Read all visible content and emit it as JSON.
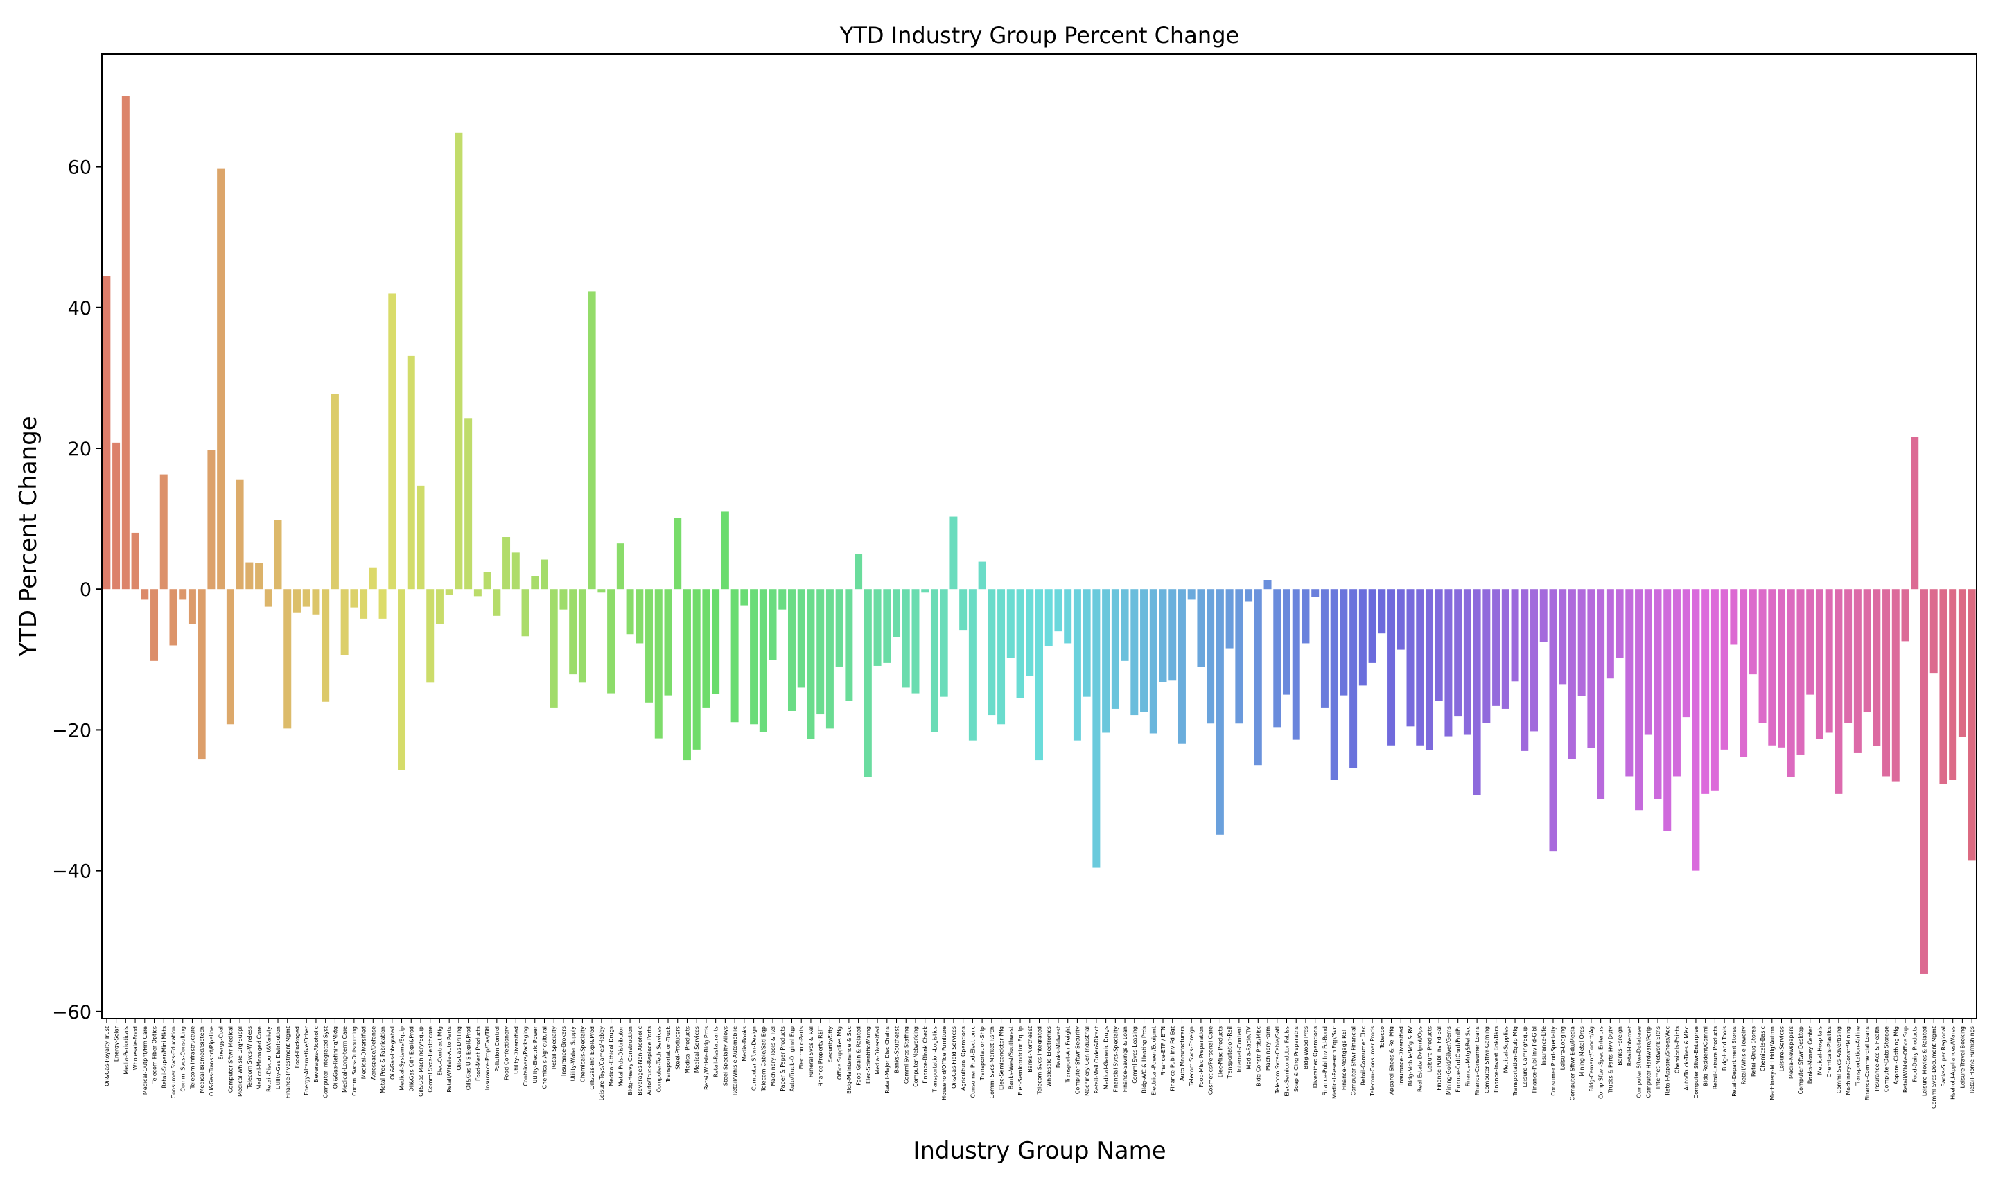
{
  "chart_data": {
    "type": "bar",
    "title": "YTD Industry Group Percent Change",
    "xlabel": "Industry Group Name",
    "ylabel": "YTD Percent Change",
    "ylim": [
      -61,
      76
    ],
    "yticks": [
      -60,
      -40,
      -20,
      0,
      20,
      40,
      60
    ],
    "grid": false,
    "legend": "none",
    "palette": "husl",
    "categories": [
      "Oil&Gas-Royalty Trust",
      "Energy-Solar",
      "Media-Periodicals",
      "Wholesale-Food",
      "Medical-Outpnt/Hm Care",
      "Telecom-Fiber Optics",
      "Retail-Super/Mini Mkts",
      "Consumer Svcs-Education",
      "Comml Svcs-Consulting",
      "Telecom-Infrastructure",
      "Medical-Biomed/Biotech",
      "Oil&Gas-Transprt/Pipeline",
      "Energy-Coal",
      "Computer Sftwr-Medical",
      "Medical-Whlsle Drg/Suppl",
      "Telecom Svcs-Wireless",
      "Medical-Managed Care",
      "Retail-Discount&Variety",
      "Utility-Gas Distribution",
      "Finance-Investment Mgmt",
      "Food-Packaged",
      "Energy-Alternative/Other",
      "Beverages-Alcoholic",
      "Computer-Integrated Syst",
      "Oil&Gas-Refining/Mktg",
      "Medical-Long-term Care",
      "Comml Svcs-Outsourcing",
      "Medical-Diversified",
      "Aerospace/Defense",
      "Metal Proc & Fabrication",
      "Oil&Gas-Integrated",
      "Medical-Systems/Equip",
      "Oil&Gas-Cdn Expl&Prod",
      "Oil&Gas-Machinery/Equip",
      "Comml Svcs-Healthcare",
      "Elec-Contract Mfg",
      "Retail/Whlsle-Auto Parts",
      "Oil&Gas-Drilling",
      "Oil&Gas-U S Expl&Prod",
      "Food-Meat Products",
      "Insurance-Prop/Cas/Titl",
      "Pollution Control",
      "Food-Confectionery",
      "Utility-Diversified",
      "Containers/Packaging",
      "Utility-Electric Power",
      "Chemicals-Agricultural",
      "Retail-Specialty",
      "Insurance-Brokers",
      "Utility-Water Supply",
      "Chemicals-Specialty",
      "Oil&Gas-Intl Expl&Prod",
      "Leisure-Toys/Games/Hobby",
      "Medical-Ethical Drugs",
      "Metal Prds-Distributor",
      "Bldg-Heavy Construction",
      "Beverages-Non-Alcoholic",
      "Auto/Truck-Replace Parts",
      "Computer-Tech Services",
      "Transportation-Truck",
      "Steel-Producers",
      "Medical-Products",
      "Medical-Services",
      "Retail/Whlsle-Bldg Prds",
      "Retail-Restaurants",
      "Steel-Specialty Alloys",
      "Retail/Whlsle-Automobile",
      "Media-Books",
      "Computer Sftwr-Design",
      "Telecom-Cable/Satl Eqp",
      "Machinery-Tools & Rel",
      "Paper & Paper Products",
      "Auto/Truck-Original Eqp",
      "Electronic-Parts",
      "Funeral Svcs & Rel",
      "Finance-Property REIT",
      "Security/Sfty",
      "Office Supplies Mfg",
      "Bldg-Maintenance & Svc",
      "Food-Grain & Related",
      "Elec-Scientific/Msrng",
      "Media-Diversified",
      "Retail-Major Disc Chains",
      "Banks-Southeast",
      "Comml Svcs-Staffing",
      "Computer-Networking",
      "Finance-Blank Check",
      "Transportation-Logistics",
      "Household/Office Furniture",
      "Oil&Gas-Field Services",
      "Agricultural Operations",
      "Consumer Prod-Electronic",
      "Transportation-Ship",
      "Comml Svcs-Market Rsrch",
      "Elec-Semicondctor Mfg",
      "Banks-West/Southwest",
      "Elec-Semicondctor Equip",
      "Banks-Northeast",
      "Telecom Svcs-Integrated",
      "Wholesale-Electronics",
      "Banks-Midwest",
      "Transport-Air Freight",
      "Computer Sftwr-Security",
      "Machinery-Gen Industrial",
      "Retail-Mail Order&Direct",
      "Medical-Generic Drugs",
      "Financial Svcs-Specialty",
      "Finance-Savings & Loan",
      "Comml Svcs-Leasing",
      "Bldg-A/C & Heating Prds",
      "Electrical-Power/Equipmt",
      "Finance-ETF / ETN",
      "Finance-Publ Inv Fd-Eqt",
      "Auto Manufacturers",
      "Telecom Svcs-Foreign",
      "Food-Misc Preparation",
      "Cosmetics/Personal Care",
      "Elec-Misc Products",
      "Transportation-Rail",
      "Internet-Content",
      "Media-Radio/TV",
      "Bldg-Constr Prds/Misc",
      "Machinery-Farm",
      "Telecom Svcs-Cable/Satl",
      "Elec-Semicondctor Fablss",
      "Soap & Clng Preparatns",
      "Bldg-Wood Prds",
      "Diversified Operations",
      "Finance-Publ Inv Fd-Bond",
      "Medical-Research Eqp/Svc",
      "Finance-Mortgage REIT",
      "Computer Sftwr-Financial",
      "Retail-Consumer Elec",
      "Telecom-Consumer Prods",
      "Tobacco",
      "Apparel-Shoes & Rel Mfg",
      "Insurance-Diversified",
      "Bldg-Mobile/Mfg & RV",
      "Real Estate Dvlpmt/Ops",
      "Leisure-Products",
      "Finance-Publ Inv Fd-Bal",
      "Mining-Gold/Silver/Gems",
      "Finance-CrdtCard/PmtPr",
      "Finance-Mrtg&Rel Svc",
      "Finance-Consumer Loans",
      "Computer Sftwr-Gaming",
      "Finance-Invest Bnk/Bkrs",
      "Medical-Supplies",
      "Transportation-Equip Mfg",
      "Leisure-Gaming/Equip",
      "Finance-Publ Inv Fd-Glbl",
      "Insurance-Life",
      "Consumer Prod-Specialty",
      "Leisure-Lodging",
      "Computer Sftwr-Edu/Media",
      "Mining-Metal Ores",
      "Bldg-Cement/Concrt/Ag",
      "Comp Sftwr-Spec Enterprs",
      "Trucks & Parts-Hvy Duty",
      "Banks-Foreign",
      "Retail-Internet",
      "Computer Sftwr-Database",
      "Computer-Hardware/Perip",
      "Internet-Network Sltns",
      "Retail-Apparel/Shoes/Acc",
      "Chemicals-Paints",
      "Auto/Truck-Tires & Misc",
      "Computer Sftwr-Enterprse",
      "Bldg-Resident/Comml",
      "Retail-Leisure Products",
      "Bldg-Hand Tools",
      "Retail-Department Stores",
      "Retail/Whlsle-Jewelry",
      "Retail-Drug Stores",
      "Chemicals-Basic",
      "Machinery-Mtl Hdlg/Autmn",
      "Leisure-Services",
      "Media-Newspapers",
      "Computer Sftwr-Desktop",
      "Banks-Money Center",
      "Medical-Hospitals",
      "Chemicals-Plastics",
      "Comml Svcs-Advertising",
      "Machinery-Constr/Mining",
      "Transportation-Airline",
      "Finance-Commercial Loans",
      "Insurance-Acc & Health",
      "Computer-Data Storage",
      "Apparel-Clothing Mfg",
      "Retail/Whlsle-Office Sup",
      "Food-Dairy Products",
      "Leisure-Movies & Related",
      "Comml Svcs-Document Mgmt",
      "Banks-Super Regional",
      "Hsehold-Appliances/Wares",
      "Leisure-Travel Booking",
      "Retail-Home Furnishings"
    ],
    "values": [
      44.5,
      20.8,
      70.0,
      8.0,
      -1.5,
      -10.2,
      16.3,
      -8.0,
      -1.5,
      -5.0,
      -24.2,
      19.8,
      59.7,
      -19.2,
      15.5,
      3.8,
      3.7,
      -2.5,
      9.8,
      -19.8,
      -3.3,
      -2.5,
      -3.6,
      -16.0,
      27.7,
      -9.4,
      -2.6,
      -4.2,
      3.0,
      -4.2,
      42.0,
      -25.7,
      33.1,
      14.7,
      -13.3,
      -4.9,
      -0.8,
      64.8,
      24.3,
      -1.0,
      2.4,
      -3.8,
      7.4,
      5.2,
      -6.7,
      1.8,
      4.2,
      -16.9,
      -2.9,
      -12.1,
      -13.3,
      42.3,
      -0.5,
      -14.8,
      6.5,
      -6.4,
      -7.7,
      -16.1,
      -21.2,
      -15.1,
      10.1,
      -24.3,
      -22.8,
      -16.9,
      -14.9,
      11.0,
      -18.9,
      -2.3,
      -19.2,
      -20.3,
      -10.1,
      -2.9,
      -17.3,
      -14.0,
      -21.3,
      -17.8,
      -19.8,
      -11.0,
      -15.9,
      5.0,
      -26.7,
      -10.9,
      -10.5,
      -6.8,
      -14.0,
      -14.8,
      -0.5,
      -20.3,
      -15.3,
      10.3,
      -5.8,
      -21.5,
      3.9,
      -17.9,
      -19.2,
      -9.8,
      -15.5,
      -12.3,
      -24.3,
      -8.1,
      -6.0,
      -7.7,
      -21.5,
      -15.3,
      -39.6,
      -20.4,
      -17.0,
      -10.2,
      -17.9,
      -17.4,
      -20.5,
      -13.2,
      -13.0,
      -22.0,
      -1.5,
      -11.1,
      -19.1,
      -34.9,
      -8.4,
      -19.1,
      -1.8,
      -25.0,
      1.3,
      -19.6,
      -15.0,
      -21.4,
      -7.7,
      -1.1,
      -16.9,
      -27.1,
      -15.1,
      -25.4,
      -13.7,
      -10.5,
      -6.3,
      -22.2,
      -8.6,
      -19.5,
      -22.2,
      -22.9,
      -15.9,
      -20.9,
      -18.1,
      -20.7,
      -29.3,
      -19.0,
      -16.6,
      -17.0,
      -13.1,
      -23.0,
      -20.2,
      -7.5,
      -37.2,
      -13.5,
      -24.1,
      -15.2,
      -22.6,
      -29.8,
      -12.7,
      -9.8,
      -26.6,
      -31.4,
      -20.7,
      -29.8,
      -34.4,
      -26.6,
      -18.2,
      -40.0,
      -29.1,
      -28.6,
      -22.8,
      -7.9,
      -23.8,
      -12.1,
      -19.0,
      -22.2,
      -22.5,
      -26.7,
      -23.5,
      -15.0,
      -21.3,
      -20.4,
      -29.1,
      -19.0,
      -23.3,
      -17.5,
      -22.3,
      -26.6,
      -27.3,
      -7.4,
      21.6,
      -54.6,
      -12.0,
      -27.7,
      -27.1,
      -21.0,
      -38.5
    ]
  }
}
